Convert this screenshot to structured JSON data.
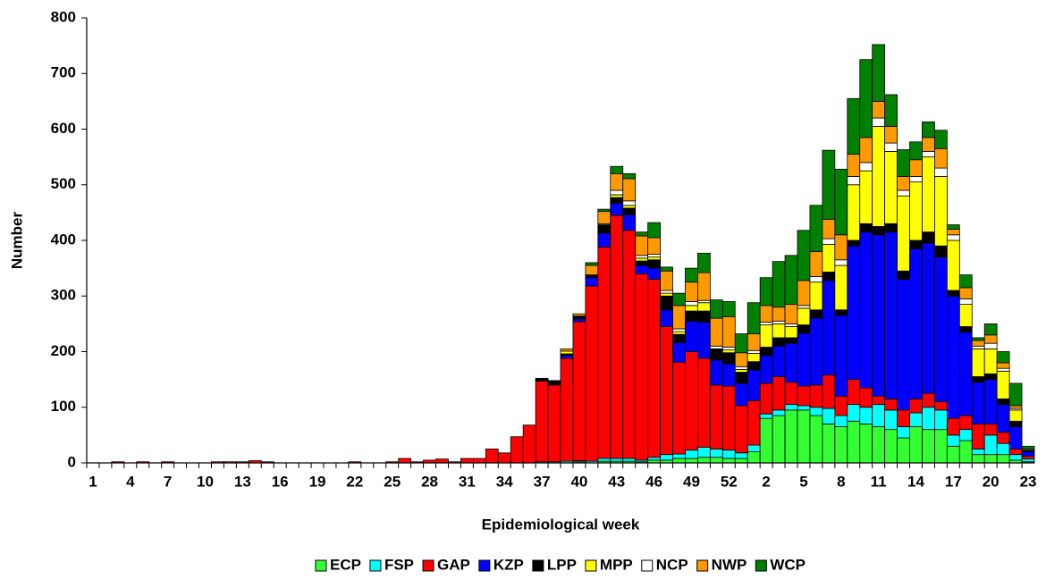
{
  "chart_data": {
    "type": "stacked_bar",
    "x_label": "Epidemiological week",
    "y_label": "Number",
    "categories": [
      "1",
      null,
      null,
      "4",
      null,
      null,
      "7",
      null,
      null,
      "10",
      null,
      null,
      "13",
      null,
      null,
      "16",
      null,
      null,
      "19",
      null,
      null,
      "22",
      null,
      null,
      "25",
      null,
      null,
      "28",
      null,
      null,
      "31",
      null,
      null,
      "34",
      null,
      null,
      "37",
      null,
      null,
      "40",
      null,
      null,
      "43",
      null,
      null,
      "46",
      null,
      null,
      "49",
      null,
      null,
      "52",
      null,
      null,
      "2",
      null,
      null,
      "5",
      null,
      null,
      "8",
      null,
      null,
      "11",
      null,
      null,
      "14",
      null,
      null,
      "17",
      null,
      null,
      "20",
      null,
      null,
      "23"
    ],
    "ylim": [
      0,
      800
    ],
    "yticks": [
      0,
      100,
      200,
      300,
      400,
      500,
      600,
      700,
      800
    ],
    "legend": "bottom",
    "series": [
      {
        "name": "ECP",
        "color": "#33ff33",
        "values": [
          0,
          0,
          0,
          0,
          0,
          0,
          0,
          0,
          0,
          0,
          0,
          0,
          0,
          0,
          0,
          0,
          0,
          0,
          0,
          0,
          0,
          0,
          0,
          0,
          0,
          0,
          0,
          0,
          0,
          0,
          0,
          0,
          0,
          0,
          0,
          0,
          0,
          0,
          0,
          2,
          0,
          3,
          3,
          3,
          2,
          5,
          5,
          8,
          8,
          10,
          10,
          8,
          8,
          20,
          80,
          85,
          95,
          95,
          85,
          70,
          65,
          75,
          70,
          65,
          60,
          45,
          65,
          60,
          60,
          30,
          40,
          15,
          15,
          15,
          5,
          2
        ]
      },
      {
        "name": "FSP",
        "color": "#00ffff",
        "values": [
          0,
          0,
          0,
          0,
          0,
          0,
          0,
          0,
          0,
          0,
          0,
          0,
          0,
          0,
          0,
          0,
          0,
          0,
          0,
          0,
          0,
          0,
          0,
          0,
          0,
          0,
          0,
          0,
          0,
          0,
          0,
          0,
          0,
          0,
          0,
          0,
          2,
          2,
          3,
          2,
          3,
          5,
          5,
          5,
          3,
          5,
          10,
          8,
          15,
          18,
          15,
          15,
          10,
          12,
          8,
          10,
          10,
          8,
          15,
          28,
          20,
          30,
          30,
          40,
          35,
          20,
          25,
          40,
          35,
          20,
          20,
          10,
          35,
          20,
          10,
          5
        ]
      },
      {
        "name": "GAP",
        "color": "#ff0000",
        "values": [
          0,
          0,
          2,
          0,
          2,
          0,
          2,
          0,
          0,
          0,
          2,
          2,
          2,
          4,
          2,
          0,
          0,
          0,
          0,
          0,
          0,
          2,
          0,
          0,
          2,
          8,
          2,
          5,
          7,
          2,
          8,
          8,
          25,
          18,
          47,
          68,
          145,
          138,
          185,
          250,
          315,
          380,
          437,
          410,
          335,
          320,
          230,
          165,
          177,
          160,
          115,
          115,
          85,
          80,
          55,
          60,
          40,
          35,
          40,
          60,
          35,
          45,
          35,
          15,
          20,
          30,
          25,
          25,
          15,
          30,
          25,
          45,
          20,
          20,
          10,
          5
        ]
      },
      {
        "name": "KZP",
        "color": "#0000ff",
        "values": [
          0,
          0,
          0,
          0,
          0,
          0,
          0,
          0,
          0,
          0,
          0,
          0,
          0,
          0,
          0,
          0,
          0,
          0,
          0,
          0,
          0,
          0,
          0,
          0,
          0,
          0,
          0,
          0,
          0,
          0,
          0,
          0,
          0,
          0,
          0,
          0,
          0,
          0,
          5,
          5,
          15,
          25,
          22,
          28,
          15,
          20,
          30,
          35,
          55,
          65,
          45,
          40,
          40,
          55,
          50,
          55,
          70,
          95,
          120,
          170,
          145,
          240,
          280,
          290,
          300,
          235,
          270,
          270,
          260,
          220,
          150,
          75,
          80,
          50,
          40,
          8
        ]
      },
      {
        "name": "LPP",
        "color": "#000000",
        "values": [
          0,
          0,
          0,
          0,
          0,
          0,
          0,
          0,
          0,
          0,
          0,
          0,
          0,
          0,
          0,
          0,
          0,
          0,
          0,
          0,
          0,
          0,
          0,
          0,
          0,
          0,
          0,
          0,
          0,
          0,
          0,
          0,
          0,
          0,
          0,
          0,
          5,
          8,
          3,
          5,
          5,
          15,
          10,
          12,
          8,
          15,
          25,
          15,
          18,
          20,
          20,
          20,
          20,
          15,
          15,
          15,
          10,
          15,
          15,
          15,
          10,
          10,
          15,
          15,
          15,
          15,
          15,
          20,
          20,
          10,
          10,
          10,
          10,
          10,
          10,
          3
        ]
      },
      {
        "name": "MPP",
        "color": "#ffff00",
        "values": [
          0,
          0,
          0,
          0,
          0,
          0,
          0,
          0,
          0,
          0,
          0,
          0,
          0,
          0,
          0,
          0,
          0,
          0,
          0,
          0,
          0,
          0,
          0,
          0,
          0,
          0,
          0,
          0,
          0,
          0,
          0,
          0,
          0,
          0,
          0,
          0,
          0,
          0,
          5,
          0,
          0,
          0,
          5,
          5,
          5,
          5,
          5,
          5,
          10,
          15,
          0,
          5,
          5,
          15,
          40,
          25,
          20,
          30,
          50,
          50,
          80,
          100,
          95,
          180,
          130,
          135,
          105,
          135,
          125,
          90,
          40,
          50,
          45,
          50,
          20,
          0
        ]
      },
      {
        "name": "NCP",
        "color": "#ffffff",
        "values": [
          0,
          0,
          0,
          0,
          0,
          0,
          0,
          0,
          0,
          0,
          0,
          0,
          0,
          0,
          0,
          0,
          0,
          0,
          0,
          0,
          0,
          0,
          0,
          0,
          0,
          0,
          0,
          0,
          0,
          0,
          0,
          0,
          0,
          0,
          0,
          0,
          0,
          0,
          0,
          0,
          0,
          2,
          8,
          8,
          5,
          5,
          5,
          5,
          7,
          4,
          5,
          5,
          5,
          5,
          5,
          5,
          5,
          5,
          10,
          10,
          10,
          15,
          15,
          15,
          15,
          10,
          10,
          10,
          15,
          10,
          10,
          5,
          10,
          5,
          3,
          2
        ]
      },
      {
        "name": "NWP",
        "color": "#ff9900",
        "values": [
          0,
          0,
          0,
          0,
          0,
          0,
          0,
          0,
          0,
          0,
          0,
          0,
          0,
          0,
          0,
          0,
          0,
          0,
          0,
          0,
          0,
          0,
          0,
          0,
          0,
          0,
          0,
          0,
          0,
          0,
          0,
          0,
          0,
          0,
          0,
          0,
          0,
          0,
          4,
          4,
          17,
          22,
          30,
          40,
          35,
          30,
          35,
          42,
          35,
          50,
          50,
          55,
          25,
          30,
          30,
          25,
          35,
          45,
          45,
          35,
          45,
          40,
          45,
          30,
          30,
          25,
          30,
          25,
          35,
          10,
          20,
          10,
          15,
          10,
          5,
          0
        ]
      },
      {
        "name": "WCP",
        "color": "#008000",
        "values": [
          0,
          0,
          0,
          0,
          0,
          0,
          0,
          0,
          0,
          0,
          0,
          0,
          0,
          0,
          0,
          0,
          0,
          0,
          0,
          0,
          0,
          0,
          0,
          0,
          0,
          0,
          0,
          0,
          0,
          0,
          0,
          0,
          0,
          0,
          0,
          0,
          0,
          0,
          0,
          0,
          5,
          4,
          13,
          9,
          7,
          27,
          7,
          22,
          25,
          35,
          33,
          27,
          34,
          56,
          50,
          82,
          88,
          90,
          83,
          124,
          118,
          100,
          140,
          102,
          57,
          48,
          32,
          28,
          33,
          8,
          23,
          5,
          20,
          20,
          40,
          5
        ]
      }
    ]
  }
}
